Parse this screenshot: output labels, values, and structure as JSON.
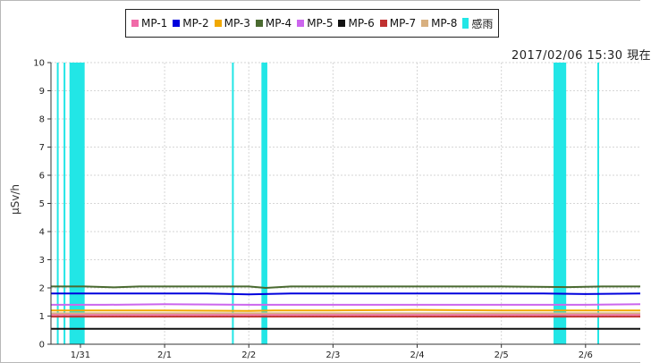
{
  "timestamp": "2017/02/06 15:30 現在",
  "chart_data": {
    "type": "line",
    "title": "",
    "xlabel": "",
    "ylabel": "μSv/h",
    "ylim": [
      0,
      10
    ],
    "yticks": [
      0,
      1,
      2,
      3,
      4,
      5,
      6,
      7,
      8,
      9,
      10
    ],
    "xticks": [
      "1/31",
      "2/1",
      "2/2",
      "2/3",
      "2/4",
      "2/5",
      "2/6"
    ],
    "xlim": [
      -0.35,
      6.65
    ],
    "grid": true,
    "legend_position": "top-center",
    "series": [
      {
        "name": "MP-1",
        "color": "#f06aa8",
        "x": [
          -0.35,
          0.3,
          1.0,
          1.45,
          2.0,
          2.3,
          3.0,
          4.0,
          5.0,
          5.7,
          6.65
        ],
        "values": [
          1.05,
          1.05,
          1.05,
          1.05,
          1.05,
          1.05,
          1.05,
          1.05,
          1.05,
          1.05,
          1.05
        ]
      },
      {
        "name": "MP-2",
        "color": "#0000dd",
        "x": [
          -0.35,
          0.5,
          1.0,
          1.5,
          2.0,
          2.5,
          3.0,
          4.0,
          5.0,
          5.5,
          6.0,
          6.65
        ],
        "values": [
          1.8,
          1.8,
          1.8,
          1.8,
          1.77,
          1.8,
          1.8,
          1.8,
          1.8,
          1.8,
          1.78,
          1.8
        ]
      },
      {
        "name": "MP-3",
        "color": "#f0a800",
        "x": [
          -0.35,
          1.0,
          2.0,
          2.3,
          3.0,
          4.0,
          5.0,
          6.0,
          6.65
        ],
        "values": [
          1.2,
          1.2,
          1.18,
          1.2,
          1.2,
          1.22,
          1.2,
          1.2,
          1.2
        ]
      },
      {
        "name": "MP-4",
        "color": "#4a6a30",
        "x": [
          -0.35,
          0.05,
          0.4,
          0.7,
          1.0,
          1.5,
          2.0,
          2.2,
          2.5,
          3.0,
          4.0,
          5.0,
          5.8,
          6.2,
          6.65
        ],
        "values": [
          2.05,
          2.05,
          2.02,
          2.05,
          2.05,
          2.05,
          2.05,
          2.0,
          2.05,
          2.05,
          2.05,
          2.05,
          2.03,
          2.05,
          2.05
        ]
      },
      {
        "name": "MP-5",
        "color": "#cc66ee",
        "x": [
          -0.35,
          0.3,
          1.0,
          2.0,
          3.0,
          4.0,
          5.0,
          6.0,
          6.65
        ],
        "values": [
          1.4,
          1.4,
          1.42,
          1.4,
          1.4,
          1.4,
          1.4,
          1.4,
          1.42
        ]
      },
      {
        "name": "MP-6",
        "color": "#111111",
        "x": [
          -0.35,
          1.0,
          2.0,
          3.0,
          4.0,
          5.0,
          6.0,
          6.65
        ],
        "values": [
          0.55,
          0.55,
          0.55,
          0.55,
          0.55,
          0.55,
          0.55,
          0.55
        ]
      },
      {
        "name": "MP-7",
        "color": "#c03030",
        "x": [
          -0.35,
          1.0,
          2.0,
          3.0,
          4.0,
          5.0,
          6.0,
          6.65
        ],
        "values": [
          0.98,
          0.98,
          0.98,
          0.98,
          0.98,
          0.98,
          0.98,
          0.98
        ]
      },
      {
        "name": "MP-8",
        "color": "#d8b080",
        "x": [
          -0.35,
          1.0,
          2.0,
          3.0,
          4.0,
          5.0,
          6.0,
          6.65
        ],
        "values": [
          1.1,
          1.1,
          1.1,
          1.1,
          1.1,
          1.1,
          1.1,
          1.1
        ]
      }
    ],
    "rain_periods": {
      "name": "感雨",
      "color": "#22e6e6",
      "intervals": [
        [
          -0.28,
          -0.26
        ],
        [
          -0.2,
          -0.18
        ],
        [
          -0.13,
          0.05
        ],
        [
          1.8,
          1.82
        ],
        [
          2.15,
          2.22
        ],
        [
          5.62,
          5.77
        ],
        [
          6.14,
          6.16
        ]
      ]
    }
  }
}
